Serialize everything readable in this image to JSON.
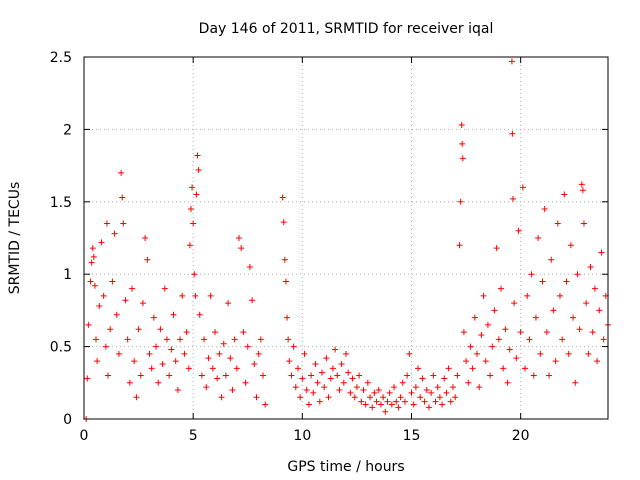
{
  "chart_data": {
    "type": "scatter",
    "title": "Day 146 of 2011, SRMTID for receiver iqal",
    "xlabel": "GPS time / hours",
    "ylabel": "SRMTID / TECUs",
    "xlim": [
      0,
      24
    ],
    "ylim": [
      0,
      2.5
    ],
    "xticks": [
      0,
      5,
      10,
      15,
      20
    ],
    "yticks": [
      0,
      0.5,
      1,
      1.5,
      2,
      2.5
    ],
    "xtick_labels": [
      "0",
      "5",
      "10",
      "15",
      "20"
    ],
    "ytick_labels": [
      "0",
      "0.5",
      "1",
      "1.5",
      "2",
      "2.5"
    ],
    "grid": true,
    "marker": "+",
    "color": "#ff0000",
    "series": [
      {
        "name": "SRMTID",
        "points": [
          [
            0.1,
            0.0
          ],
          [
            0.15,
            0.28
          ],
          [
            0.2,
            0.65
          ],
          [
            0.3,
            0.95
          ],
          [
            0.35,
            1.08
          ],
          [
            0.4,
            1.18
          ],
          [
            0.45,
            1.12
          ],
          [
            0.5,
            0.92
          ],
          [
            0.55,
            0.55
          ],
          [
            0.6,
            0.4
          ],
          [
            0.7,
            0.78
          ],
          [
            0.8,
            1.22
          ],
          [
            0.9,
            0.85
          ],
          [
            1.0,
            0.5
          ],
          [
            1.05,
            1.35
          ],
          [
            1.1,
            0.3
          ],
          [
            1.2,
            0.62
          ],
          [
            1.3,
            0.95
          ],
          [
            1.4,
            1.28
          ],
          [
            1.5,
            0.72
          ],
          [
            1.6,
            0.45
          ],
          [
            1.7,
            1.7
          ],
          [
            1.75,
            1.53
          ],
          [
            1.8,
            1.35
          ],
          [
            1.9,
            0.82
          ],
          [
            2.0,
            0.55
          ],
          [
            2.1,
            0.25
          ],
          [
            2.2,
            0.9
          ],
          [
            2.3,
            0.4
          ],
          [
            2.4,
            0.15
          ],
          [
            2.5,
            0.62
          ],
          [
            2.6,
            0.3
          ],
          [
            2.7,
            0.8
          ],
          [
            2.8,
            1.25
          ],
          [
            2.9,
            1.1
          ],
          [
            3.0,
            0.45
          ],
          [
            3.1,
            0.35
          ],
          [
            3.2,
            0.7
          ],
          [
            3.3,
            0.5
          ],
          [
            3.4,
            0.25
          ],
          [
            3.5,
            0.62
          ],
          [
            3.6,
            0.38
          ],
          [
            3.7,
            0.9
          ],
          [
            3.8,
            0.55
          ],
          [
            3.9,
            0.3
          ],
          [
            4.0,
            0.48
          ],
          [
            4.1,
            0.72
          ],
          [
            4.2,
            0.4
          ],
          [
            4.3,
            0.2
          ],
          [
            4.4,
            0.55
          ],
          [
            4.5,
            0.85
          ],
          [
            4.6,
            0.45
          ],
          [
            4.7,
            0.6
          ],
          [
            4.8,
            0.35
          ],
          [
            4.85,
            1.2
          ],
          [
            4.9,
            1.45
          ],
          [
            4.95,
            1.6
          ],
          [
            5.0,
            1.35
          ],
          [
            5.05,
            1.0
          ],
          [
            5.1,
            0.85
          ],
          [
            5.15,
            1.55
          ],
          [
            5.2,
            1.82
          ],
          [
            5.25,
            1.72
          ],
          [
            5.3,
            0.72
          ],
          [
            5.4,
            0.3
          ],
          [
            5.5,
            0.55
          ],
          [
            5.6,
            0.22
          ],
          [
            5.7,
            0.42
          ],
          [
            5.8,
            0.85
          ],
          [
            5.9,
            0.35
          ],
          [
            6.0,
            0.6
          ],
          [
            6.1,
            0.28
          ],
          [
            6.2,
            0.45
          ],
          [
            6.3,
            0.15
          ],
          [
            6.4,
            0.52
          ],
          [
            6.5,
            0.3
          ],
          [
            6.6,
            0.8
          ],
          [
            6.7,
            0.42
          ],
          [
            6.8,
            0.2
          ],
          [
            6.9,
            0.55
          ],
          [
            7.0,
            0.35
          ],
          [
            7.1,
            1.25
          ],
          [
            7.2,
            1.18
          ],
          [
            7.3,
            0.6
          ],
          [
            7.4,
            0.25
          ],
          [
            7.5,
            0.5
          ],
          [
            7.6,
            1.05
          ],
          [
            7.7,
            0.82
          ],
          [
            7.8,
            0.38
          ],
          [
            7.9,
            0.15
          ],
          [
            8.0,
            0.45
          ],
          [
            8.1,
            0.55
          ],
          [
            8.2,
            0.3
          ],
          [
            8.3,
            0.1
          ],
          [
            9.1,
            1.53
          ],
          [
            9.15,
            1.36
          ],
          [
            9.2,
            1.1
          ],
          [
            9.25,
            0.95
          ],
          [
            9.3,
            0.7
          ],
          [
            9.35,
            0.55
          ],
          [
            9.4,
            0.4
          ],
          [
            9.5,
            0.3
          ],
          [
            9.6,
            0.5
          ],
          [
            9.7,
            0.22
          ],
          [
            9.8,
            0.35
          ],
          [
            9.9,
            0.15
          ],
          [
            10.0,
            0.28
          ],
          [
            10.1,
            0.45
          ],
          [
            10.2,
            0.2
          ],
          [
            10.3,
            0.1
          ],
          [
            10.4,
            0.3
          ],
          [
            10.5,
            0.18
          ],
          [
            10.6,
            0.38
          ],
          [
            10.7,
            0.25
          ],
          [
            10.8,
            0.12
          ],
          [
            10.9,
            0.32
          ],
          [
            11.0,
            0.22
          ],
          [
            11.1,
            0.42
          ],
          [
            11.2,
            0.15
          ],
          [
            11.3,
            0.28
          ],
          [
            11.4,
            0.35
          ],
          [
            11.5,
            0.48
          ],
          [
            11.6,
            0.3
          ],
          [
            11.7,
            0.2
          ],
          [
            11.8,
            0.38
          ],
          [
            11.9,
            0.25
          ],
          [
            12.0,
            0.45
          ],
          [
            12.1,
            0.32
          ],
          [
            12.2,
            0.18
          ],
          [
            12.3,
            0.28
          ],
          [
            12.4,
            0.15
          ],
          [
            12.5,
            0.22
          ],
          [
            12.6,
            0.3
          ],
          [
            12.7,
            0.12
          ],
          [
            12.8,
            0.2
          ],
          [
            12.9,
            0.1
          ],
          [
            13.0,
            0.25
          ],
          [
            13.1,
            0.15
          ],
          [
            13.2,
            0.08
          ],
          [
            13.3,
            0.18
          ],
          [
            13.4,
            0.12
          ],
          [
            13.5,
            0.2
          ],
          [
            13.6,
            0.1
          ],
          [
            13.7,
            0.15
          ],
          [
            13.8,
            0.05
          ],
          [
            13.9,
            0.12
          ],
          [
            14.0,
            0.18
          ],
          [
            14.1,
            0.1
          ],
          [
            14.2,
            0.22
          ],
          [
            14.3,
            0.12
          ],
          [
            14.4,
            0.08
          ],
          [
            14.5,
            0.15
          ],
          [
            14.6,
            0.25
          ],
          [
            14.7,
            0.12
          ],
          [
            14.8,
            0.3
          ],
          [
            14.9,
            0.45
          ],
          [
            15.0,
            0.18
          ],
          [
            15.1,
            0.1
          ],
          [
            15.2,
            0.22
          ],
          [
            15.3,
            0.35
          ],
          [
            15.4,
            0.15
          ],
          [
            15.5,
            0.28
          ],
          [
            15.6,
            0.12
          ],
          [
            15.7,
            0.2
          ],
          [
            15.8,
            0.08
          ],
          [
            15.9,
            0.18
          ],
          [
            16.0,
            0.3
          ],
          [
            16.1,
            0.12
          ],
          [
            16.2,
            0.22
          ],
          [
            16.3,
            0.15
          ],
          [
            16.4,
            0.1
          ],
          [
            16.5,
            0.28
          ],
          [
            16.6,
            0.18
          ],
          [
            16.7,
            0.35
          ],
          [
            16.8,
            0.12
          ],
          [
            16.9,
            0.22
          ],
          [
            17.0,
            0.15
          ],
          [
            17.1,
            0.3
          ],
          [
            17.2,
            1.2
          ],
          [
            17.25,
            1.5
          ],
          [
            17.3,
            2.03
          ],
          [
            17.32,
            1.9
          ],
          [
            17.35,
            1.8
          ],
          [
            17.4,
            0.6
          ],
          [
            17.5,
            0.4
          ],
          [
            17.6,
            0.25
          ],
          [
            17.7,
            0.5
          ],
          [
            17.8,
            0.35
          ],
          [
            17.9,
            0.7
          ],
          [
            18.0,
            0.45
          ],
          [
            18.1,
            0.22
          ],
          [
            18.2,
            0.58
          ],
          [
            18.3,
            0.85
          ],
          [
            18.4,
            0.4
          ],
          [
            18.5,
            0.65
          ],
          [
            18.6,
            0.3
          ],
          [
            18.7,
            0.5
          ],
          [
            18.8,
            0.75
          ],
          [
            18.9,
            1.18
          ],
          [
            19.0,
            0.55
          ],
          [
            19.1,
            0.9
          ],
          [
            19.2,
            0.35
          ],
          [
            19.3,
            0.62
          ],
          [
            19.4,
            0.25
          ],
          [
            19.5,
            0.48
          ],
          [
            19.6,
            2.47
          ],
          [
            19.62,
            1.97
          ],
          [
            19.65,
            1.52
          ],
          [
            19.7,
            0.8
          ],
          [
            19.8,
            0.42
          ],
          [
            19.9,
            1.3
          ],
          [
            20.0,
            0.6
          ],
          [
            20.1,
            1.6
          ],
          [
            20.2,
            0.35
          ],
          [
            20.3,
            0.85
          ],
          [
            20.4,
            0.55
          ],
          [
            20.5,
            1.0
          ],
          [
            20.6,
            0.3
          ],
          [
            20.7,
            0.7
          ],
          [
            20.8,
            1.25
          ],
          [
            20.9,
            0.45
          ],
          [
            21.0,
            0.95
          ],
          [
            21.1,
            1.45
          ],
          [
            21.2,
            0.6
          ],
          [
            21.3,
            0.3
          ],
          [
            21.4,
            1.1
          ],
          [
            21.5,
            0.75
          ],
          [
            21.6,
            0.4
          ],
          [
            21.7,
            1.35
          ],
          [
            21.8,
            0.85
          ],
          [
            21.9,
            0.55
          ],
          [
            22.0,
            1.55
          ],
          [
            22.1,
            0.95
          ],
          [
            22.2,
            0.45
          ],
          [
            22.3,
            1.2
          ],
          [
            22.4,
            0.7
          ],
          [
            22.5,
            0.25
          ],
          [
            22.6,
            1.0
          ],
          [
            22.7,
            0.62
          ],
          [
            22.8,
            1.62
          ],
          [
            22.85,
            1.58
          ],
          [
            22.9,
            1.35
          ],
          [
            23.0,
            0.8
          ],
          [
            23.1,
            0.45
          ],
          [
            23.2,
            1.05
          ],
          [
            23.3,
            0.6
          ],
          [
            23.4,
            0.9
          ],
          [
            23.5,
            0.4
          ],
          [
            23.6,
            0.75
          ],
          [
            23.7,
            1.15
          ],
          [
            23.8,
            0.55
          ],
          [
            23.9,
            0.85
          ],
          [
            24.0,
            0.65
          ]
        ]
      }
    ]
  }
}
